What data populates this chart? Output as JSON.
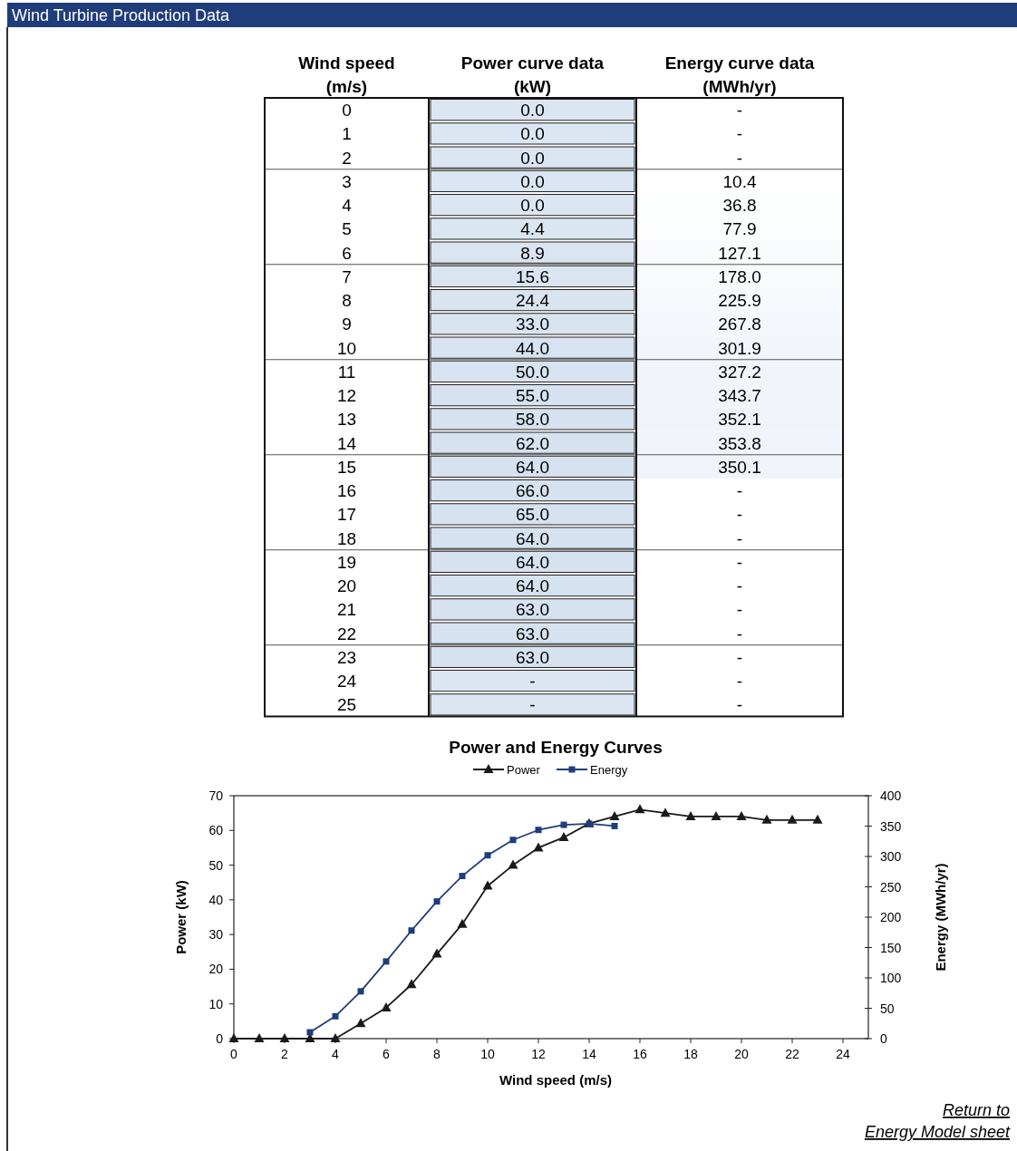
{
  "chart_data": [
    {
      "type": "heatmap",
      "title": "Wind Turbine Production Data",
      "ylabel": "Wind speed\n(m/s)",
      "categories": [
        "Power curve data\n(kW)",
        "Energy curve data\n(MWh/yr)"
      ],
      "y_categories": [
        "0",
        "1",
        "2",
        "3",
        "4",
        "5",
        "6",
        "7",
        "8",
        "9",
        "10",
        "11",
        "12",
        "13",
        "14",
        "15",
        "16",
        "17",
        "18",
        "19",
        "20",
        "21",
        "22",
        "23",
        "24",
        "25"
      ],
      "cells": [
        [
          0,
          null
        ],
        [
          0,
          null
        ],
        [
          0,
          null
        ],
        [
          0,
          10.4
        ],
        [
          0,
          36.8
        ],
        [
          4.4,
          77.9
        ],
        [
          8.9,
          127.1
        ],
        [
          15.6,
          178
        ],
        [
          24.4,
          225.9
        ],
        [
          33,
          267.8
        ],
        [
          44,
          301.9
        ],
        [
          50,
          327.2
        ],
        [
          55,
          343.7
        ],
        [
          58,
          352.1
        ],
        [
          62,
          353.8
        ],
        [
          64,
          350.1
        ],
        [
          66,
          null
        ],
        [
          65,
          null
        ],
        [
          64,
          null
        ],
        [
          64,
          null
        ],
        [
          64,
          null
        ],
        [
          63,
          null
        ],
        [
          63,
          null
        ],
        [
          63,
          null
        ],
        [
          null,
          null
        ],
        [
          null,
          null
        ]
      ],
      "cell_labels": [
        [
          "0.0",
          "-"
        ],
        [
          "0.0",
          "-"
        ],
        [
          "0.0",
          "-"
        ],
        [
          "0.0",
          "10.4"
        ],
        [
          "0.0",
          "36.8"
        ],
        [
          "4.4",
          "77.9"
        ],
        [
          "8.9",
          "127.1"
        ],
        [
          "15.6",
          "178.0"
        ],
        [
          "24.4",
          "225.9"
        ],
        [
          "33.0",
          "267.8"
        ],
        [
          "44.0",
          "301.9"
        ],
        [
          "50.0",
          "327.2"
        ],
        [
          "55.0",
          "343.7"
        ],
        [
          "58.0",
          "352.1"
        ],
        [
          "62.0",
          "353.8"
        ],
        [
          "64.0",
          "350.1"
        ],
        [
          "66.0",
          "-"
        ],
        [
          "65.0",
          "-"
        ],
        [
          "64.0",
          "-"
        ],
        [
          "64.0",
          "-"
        ],
        [
          "64.0",
          "-"
        ],
        [
          "63.0",
          "-"
        ],
        [
          "63.0",
          "-"
        ],
        [
          "63.0",
          "-"
        ],
        [
          "-",
          "-"
        ],
        [
          "-",
          "-"
        ]
      ]
    },
    {
      "type": "line",
      "title": "Power and Energy Curves",
      "xlabel": "Wind speed (m/s)",
      "ylabel": "Power (kW)",
      "y2label": "Energy (MWh/yr)",
      "x": [
        0,
        1,
        2,
        3,
        4,
        5,
        6,
        7,
        8,
        9,
        10,
        11,
        12,
        13,
        14,
        15,
        16,
        17,
        18,
        19,
        20,
        21,
        22,
        23
      ],
      "series": [
        {
          "name": "Power",
          "color": "#1a1a1a",
          "marker": "triangle",
          "values": [
            0,
            0,
            0,
            0,
            0,
            4.4,
            8.9,
            15.6,
            24.4,
            33,
            44,
            50,
            55,
            58,
            62,
            64,
            66,
            65,
            64,
            64,
            64,
            63,
            63,
            63
          ]
        },
        {
          "name": "Energy",
          "color": "#1f3d7a",
          "marker": "square",
          "axis": "y2",
          "values": [
            null,
            null,
            null,
            10.4,
            36.8,
            77.9,
            127.1,
            178,
            225.9,
            267.8,
            301.9,
            327.2,
            343.7,
            352.1,
            353.8,
            350.1,
            null,
            null,
            null,
            null,
            null,
            null,
            null,
            null
          ]
        }
      ],
      "xlim": [
        0,
        25
      ],
      "xticks": [
        0,
        2,
        4,
        6,
        8,
        10,
        12,
        14,
        16,
        18,
        20,
        22,
        24
      ],
      "ylim": [
        0,
        70
      ],
      "yticks": [
        0,
        10,
        20,
        30,
        40,
        50,
        60,
        70
      ],
      "y2lim": [
        0,
        400
      ],
      "y2ticks": [
        0,
        50,
        100,
        150,
        200,
        250,
        300,
        350,
        400
      ],
      "legend": "top",
      "annotations": [
        "Return to\nEnergy Model sheet"
      ]
    }
  ]
}
